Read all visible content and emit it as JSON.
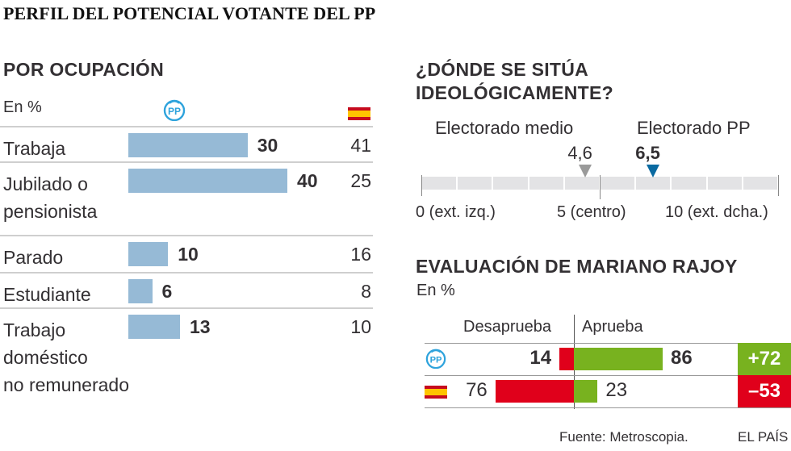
{
  "title": "PERFIL DEL POTENCIAL VOTANTE DEL PP",
  "colors": {
    "pp_bar": "#96bad6",
    "pp_blue": "#0a6aa1",
    "pp_logo": "#2ea3dc",
    "approve": "#78b21f",
    "disapprove": "#e0001b",
    "scale_bg": "#e3e3e5",
    "average_marker": "#9a9a9a"
  },
  "chart_data": [
    {
      "type": "bar",
      "title": "POR OCUPACIÓN",
      "unit_label": "En %",
      "legend": [
        {
          "name": "PP",
          "icon": "pp-logo-icon"
        },
        {
          "name": "España",
          "icon": "spain-flag-icon"
        }
      ],
      "categories": [
        "Trabaja",
        "Jubilado o pensionista",
        "Parado",
        "Estudiante",
        "Trabajo doméstico no remunerado"
      ],
      "category_lines": [
        [
          "Trabaja"
        ],
        [
          "Jubilado o",
          "pensionista"
        ],
        [
          "Parado"
        ],
        [
          "Estudiante"
        ],
        [
          "Trabajo",
          "doméstico",
          "no remunerado"
        ]
      ],
      "series": [
        {
          "name": "PP",
          "values": [
            30,
            40,
            10,
            6,
            13
          ]
        },
        {
          "name": "España",
          "values": [
            41,
            25,
            16,
            8,
            10
          ]
        }
      ],
      "value_labels_pp": [
        "30",
        "40",
        "10",
        "6",
        "13"
      ],
      "value_labels_es": [
        "41",
        "25",
        "16",
        "8",
        "10"
      ],
      "xlim": [
        0,
        40
      ]
    },
    {
      "type": "scatter",
      "title_lines": [
        "¿DÓNDE SE SITÚA",
        "IDEOLÓGICAMENTE?"
      ],
      "scale": [
        0,
        10
      ],
      "scale_labels": [
        "0 (ext. izq.)",
        "5 (centro)",
        "10 (ext. dcha.)"
      ],
      "markers": [
        {
          "name": "Electorado medio",
          "value": 4.6,
          "label": "4,6"
        },
        {
          "name": "Electorado PP",
          "value": 6.5,
          "label": "6,5"
        }
      ]
    },
    {
      "type": "bar",
      "title": "EVALUACIÓN DE MARIANO RAJOY",
      "unit_label": "En %",
      "column_headers": {
        "disapprove": "Desaprueba",
        "approve": "Aprueba"
      },
      "categories": [
        "PP",
        "España"
      ],
      "series": [
        {
          "name": "Desaprueba",
          "values": [
            14,
            76
          ]
        },
        {
          "name": "Aprueba",
          "values": [
            86,
            23
          ]
        }
      ],
      "disapprove_labels": [
        "14",
        "76"
      ],
      "approve_labels": [
        "86",
        "23"
      ],
      "net": [
        72,
        -53
      ],
      "net_labels": [
        "+72",
        "–53"
      ]
    }
  ],
  "footer": {
    "source": "Fuente: Metroscopia.",
    "brand": "EL PAÍS"
  }
}
